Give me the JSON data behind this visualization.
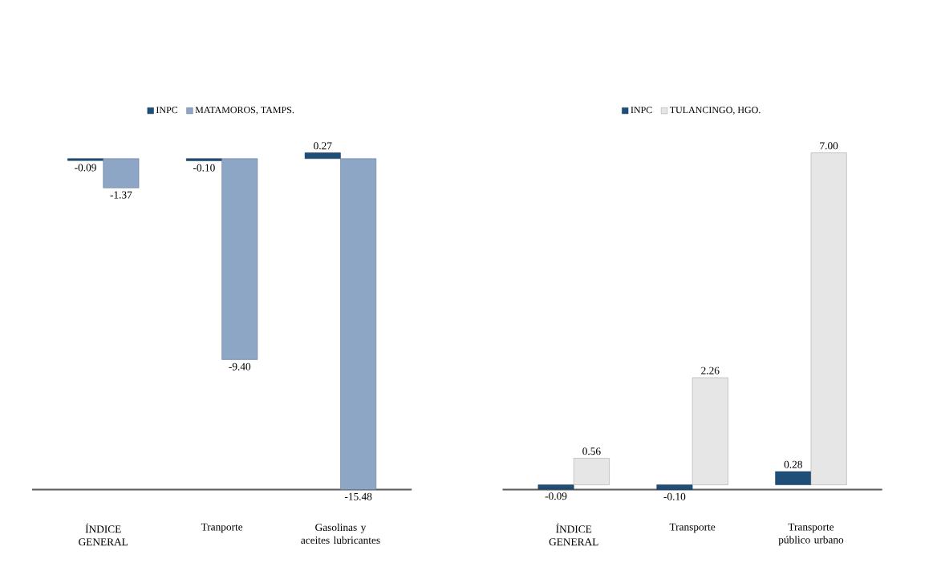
{
  "chart_data": [
    {
      "type": "bar",
      "categories": [
        "ÍNDICE GENERAL",
        "Tranporte",
        "Gasolinas y aceites lubricantes"
      ],
      "legend": "top",
      "series": [
        {
          "name": "INPC",
          "color": "#1f4e79",
          "values": [
            -0.09,
            -0.1,
            0.27
          ],
          "value_labels": [
            "-0.09",
            "-0.10",
            "0.27"
          ]
        },
        {
          "name": "MATAMOROS, TAMPS.",
          "color": "#8ea6c6",
          "values": [
            -1.37,
            -9.4,
            -15.48
          ],
          "value_labels": [
            "-1.37",
            "-9.40",
            "-15.48"
          ]
        }
      ]
    },
    {
      "type": "bar",
      "categories": [
        "ÍNDICE GENERAL",
        "Transporte",
        "Transporte público urbano"
      ],
      "legend": "top",
      "series": [
        {
          "name": "INPC",
          "color": "#1f4e79",
          "values": [
            -0.09,
            -0.1,
            0.28
          ],
          "value_labels": [
            "-0.09",
            "-0.10",
            "0.28"
          ]
        },
        {
          "name": "TULANCINGO, HGO.",
          "color": "#e6e6e6",
          "values": [
            0.56,
            2.26,
            7.0
          ],
          "value_labels": [
            "0.56",
            "2.26",
            "7.00"
          ]
        }
      ]
    }
  ]
}
